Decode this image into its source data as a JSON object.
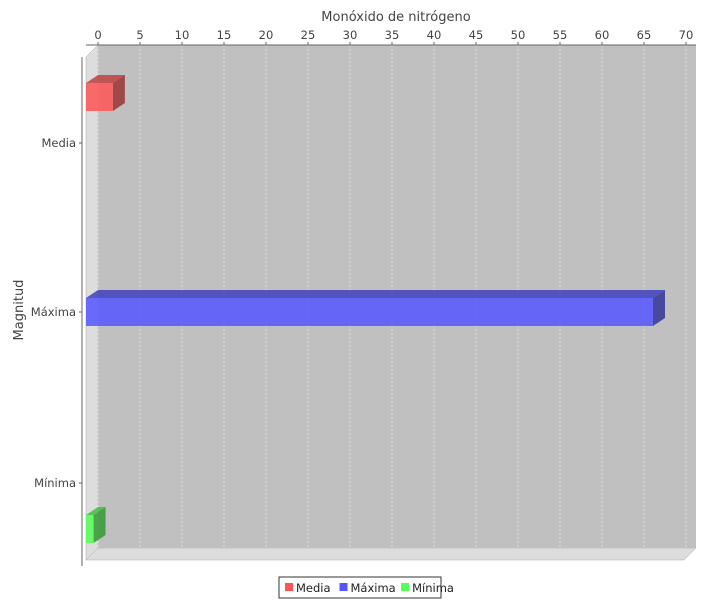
{
  "chart_data": {
    "type": "bar",
    "orientation": "horizontal",
    "three_d": true,
    "title": "",
    "xlabel": "Monóxido de nitrógeno",
    "xlabel_position": "top",
    "ylabel": "Magnitud",
    "xlim": [
      0,
      70
    ],
    "xticks": [
      0,
      5,
      10,
      15,
      20,
      25,
      30,
      35,
      40,
      45,
      50,
      55,
      60,
      65,
      70
    ],
    "categories": [
      "Media",
      "Máxima",
      "Mínima"
    ],
    "series": [
      {
        "name": "Media",
        "color": "#ff5555",
        "values": [
          3.2,
          null,
          null
        ]
      },
      {
        "name": "Máxima",
        "color": "#5555ff",
        "values": [
          null,
          67.5,
          null
        ]
      },
      {
        "name": "Mínima",
        "color": "#55ff55",
        "values": [
          null,
          null,
          0.9
        ]
      }
    ],
    "grid": true,
    "legend": "bottom-center",
    "plot_background": "#c0c0c0"
  }
}
